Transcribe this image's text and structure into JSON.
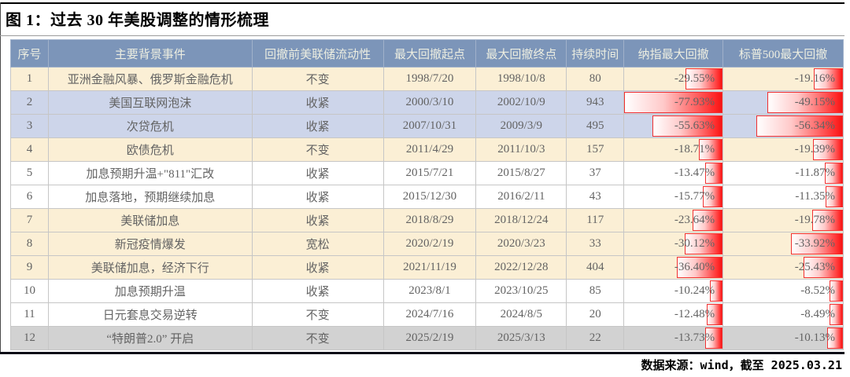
{
  "title": "图 1：过去 30 年美股调整的情形梳理",
  "footer_source": "数据来源：wind，截至 2025.03.21",
  "colors": {
    "header_bg": "#7C95B9",
    "header_text": "#EDEEE1",
    "row_yellow": "#FBEFD5",
    "row_blue": "#CDD5EA",
    "row_white": "#FFFFFF",
    "row_gray": "#D2D2D2",
    "body_text": "#636363",
    "databar_red": "#F51414",
    "databar_border": "#F03030"
  },
  "chart_data": {
    "type": "table",
    "title": "图 1：过去 30 年美股调整的情形梳理",
    "columns": [
      "序号",
      "主要背景事件",
      "回撤前美联储流动性",
      "最大回撤起点",
      "最大回撤终点",
      "持续时间",
      "纳指最大回撤",
      "标普500最大回撤"
    ],
    "databar_note": "red gradient data bars anchored to right edge of the two drawdown columns; bar length proportional to |drawdown|, global max -77.93% = full cell width",
    "rows": [
      {
        "no": "1",
        "event": "亚洲金融风暴、俄罗斯金融危机",
        "liquidity": "不变",
        "start": "1998/7/20",
        "end": "1998/10/8",
        "days": "80",
        "nasdaq": -29.55,
        "sp500": -19.16,
        "bg": "yellow"
      },
      {
        "no": "2",
        "event": "美国互联网泡沫",
        "liquidity": "收紧",
        "start": "2000/3/10",
        "end": "2002/10/9",
        "days": "943",
        "nasdaq": -77.93,
        "sp500": -49.15,
        "bg": "blue"
      },
      {
        "no": "3",
        "event": "次贷危机",
        "liquidity": "收紧",
        "start": "2007/10/31",
        "end": "2009/3/9",
        "days": "495",
        "nasdaq": -55.63,
        "sp500": -56.34,
        "bg": "blue"
      },
      {
        "no": "4",
        "event": "欧债危机",
        "liquidity": "不变",
        "start": "2011/4/29",
        "end": "2011/10/3",
        "days": "157",
        "nasdaq": -18.71,
        "sp500": -19.39,
        "bg": "yellow"
      },
      {
        "no": "5",
        "event": "加息预期升温+\"811\"汇改",
        "liquidity": "收紧",
        "start": "2015/7/21",
        "end": "2015/8/27",
        "days": "37",
        "nasdaq": -13.47,
        "sp500": -11.87,
        "bg": "white"
      },
      {
        "no": "6",
        "event": "加息落地，预期继续加息",
        "liquidity": "收紧",
        "start": "2015/12/30",
        "end": "2016/2/11",
        "days": "43",
        "nasdaq": -15.77,
        "sp500": -11.35,
        "bg": "white"
      },
      {
        "no": "7",
        "event": "美联储加息",
        "liquidity": "收紧",
        "start": "2018/8/29",
        "end": "2018/12/24",
        "days": "117",
        "nasdaq": -23.64,
        "sp500": -19.78,
        "bg": "yellow"
      },
      {
        "no": "8",
        "event": "新冠疫情爆发",
        "liquidity": "宽松",
        "start": "2020/2/19",
        "end": "2020/3/23",
        "days": "33",
        "nasdaq": -30.12,
        "sp500": -33.92,
        "bg": "yellow"
      },
      {
        "no": "9",
        "event": "美联储加息，经济下行",
        "liquidity": "收紧",
        "start": "2021/11/19",
        "end": "2022/12/28",
        "days": "404",
        "nasdaq": -36.4,
        "sp500": -25.43,
        "bg": "yellow"
      },
      {
        "no": "10",
        "event": "加息预期升温",
        "liquidity": "收紧",
        "start": "2023/8/1",
        "end": "2023/10/25",
        "days": "85",
        "nasdaq": -10.24,
        "sp500": -8.52,
        "bg": "white"
      },
      {
        "no": "11",
        "event": "日元套息交易逆转",
        "liquidity": "不变",
        "start": "2024/7/16",
        "end": "2024/8/5",
        "days": "20",
        "nasdaq": -12.48,
        "sp500": -8.49,
        "bg": "white"
      },
      {
        "no": "12",
        "event": "“特朗普2.0” 开启",
        "liquidity": "不变",
        "start": "2025/2/19",
        "end": "2025/3/13",
        "days": "22",
        "nasdaq": -13.73,
        "sp500": -10.13,
        "bg": "gray"
      }
    ]
  }
}
